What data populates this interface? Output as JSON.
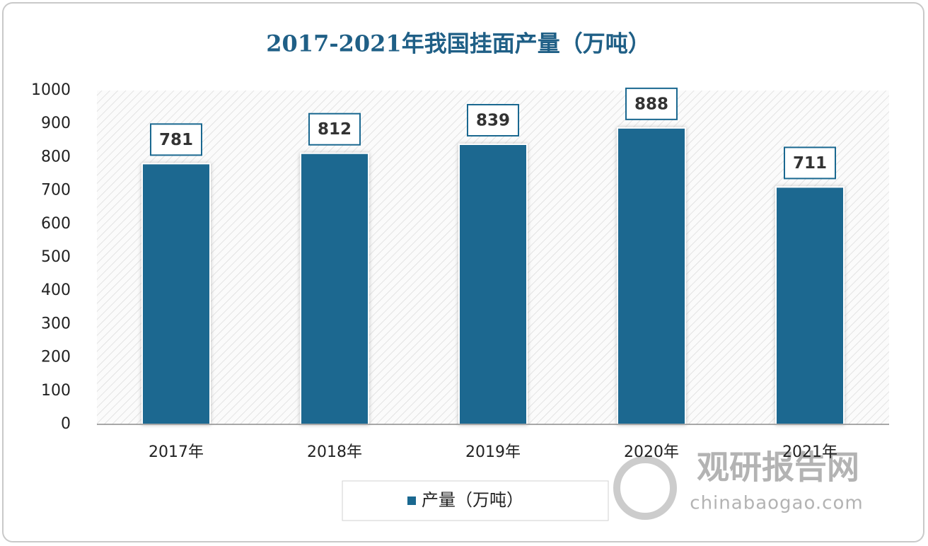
{
  "chart_data": {
    "type": "bar",
    "title": "2017-2021年我国挂面产量（万吨）",
    "categories": [
      "2017年",
      "2018年",
      "2019年",
      "2020年",
      "2021年"
    ],
    "series": [
      {
        "name": "产量（万吨）",
        "color": "#1a6890",
        "values": [
          781,
          812,
          839,
          888,
          711
        ]
      }
    ],
    "ylim": [
      0,
      1000
    ],
    "yticks": [
      0,
      100,
      200,
      300,
      400,
      500,
      600,
      700,
      800,
      900,
      1000
    ],
    "grid": false,
    "legend": "bottom"
  },
  "watermark": {
    "name": "观研报告网",
    "site": "chinabaogao.com"
  }
}
